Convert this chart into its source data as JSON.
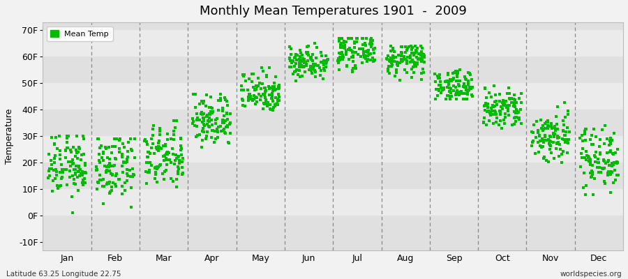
{
  "title": "Monthly Mean Temperatures 1901  -  2009",
  "ylabel": "Temperature",
  "xlabel_labels": [
    "Jan",
    "Feb",
    "Mar",
    "Apr",
    "May",
    "Jun",
    "Jul",
    "Aug",
    "Sep",
    "Oct",
    "Nov",
    "Dec"
  ],
  "ytick_labels": [
    "-10F",
    "0F",
    "10F",
    "20F",
    "30F",
    "40F",
    "50F",
    "60F",
    "70F"
  ],
  "ytick_values": [
    -10,
    0,
    10,
    20,
    30,
    40,
    50,
    60,
    70
  ],
  "ylim": [
    -13,
    73
  ],
  "dot_color": "#00bb00",
  "bg_color": "#f2f2f2",
  "plot_bg_light": "#ebebeb",
  "plot_bg_dark": "#e0e0e0",
  "legend_label": "Mean Temp",
  "footer_left": "Latitude 63.25 Longitude 22.75",
  "footer_right": "worldspecies.org",
  "n_years": 109,
  "monthly_means": [
    19,
    18,
    22,
    36,
    47,
    58,
    62,
    59,
    49,
    40,
    30,
    22
  ],
  "monthly_spreads": [
    6,
    6,
    6,
    5,
    4,
    3,
    3,
    3,
    3,
    4,
    5,
    6
  ],
  "monthly_mins": [
    -8,
    -5,
    8,
    25,
    38,
    51,
    54,
    51,
    44,
    33,
    20,
    8
  ],
  "monthly_maxs": [
    30,
    29,
    36,
    46,
    56,
    65,
    67,
    64,
    55,
    51,
    43,
    34
  ]
}
